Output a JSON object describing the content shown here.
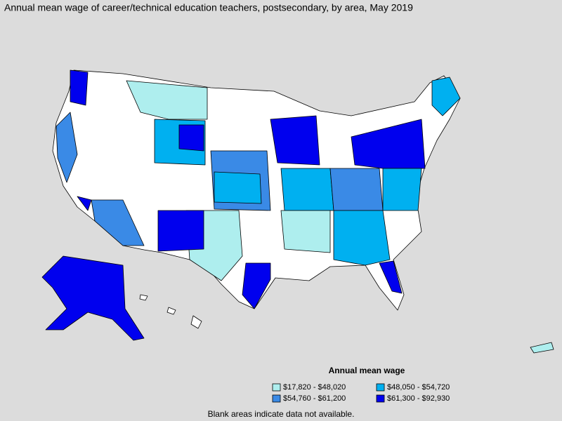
{
  "title": "Annual mean wage of career/technical education teachers, postsecondary, by area, May 2019",
  "legend": {
    "title": "Annual mean wage",
    "items": [
      {
        "label": "$17,820 - $48,020",
        "color": "#aeeeee"
      },
      {
        "label": "$48,050 - $54,720",
        "color": "#00b0f0"
      },
      {
        "label": "$54,760 - $61,200",
        "color": "#3a8ae6"
      },
      {
        "label": "$61,300 - $92,930",
        "color": "#0000ee"
      }
    ]
  },
  "note": "Blank areas indicate data not available."
}
